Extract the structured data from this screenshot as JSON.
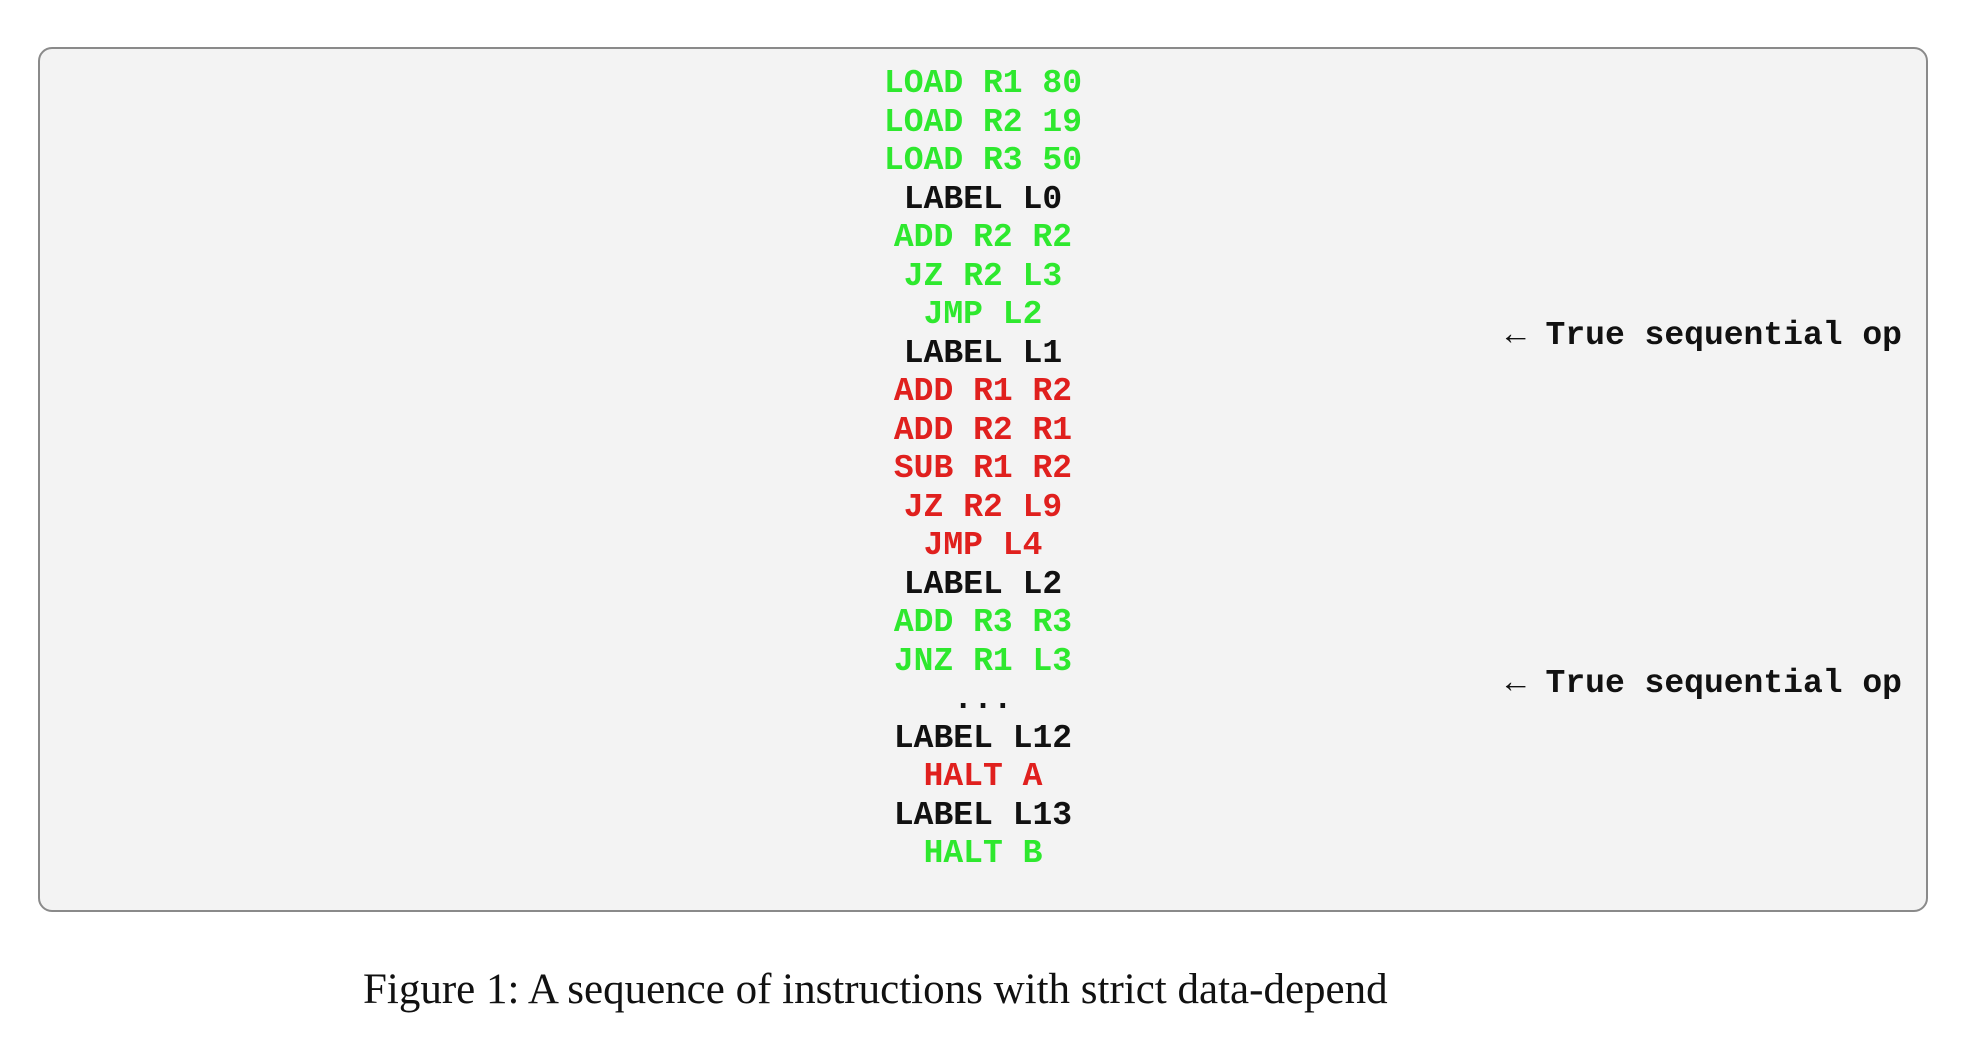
{
  "listing": {
    "lines": [
      {
        "text": "LOAD R1 80",
        "color": "#2ee82e"
      },
      {
        "text": "LOAD R2 19",
        "color": "#2ee82e"
      },
      {
        "text": "LOAD R3 50",
        "color": "#2ee82e"
      },
      {
        "text": "LABEL L0",
        "color": "#111111"
      },
      {
        "text": "ADD R2 R2",
        "color": "#2ee82e"
      },
      {
        "text": "JZ R2 L3",
        "color": "#2ee82e"
      },
      {
        "text": "JMP L2",
        "color": "#2ee82e"
      },
      {
        "text": "LABEL L1",
        "color": "#111111"
      },
      {
        "text": "ADD R1 R2",
        "color": "#e0201e"
      },
      {
        "text": "ADD R2 R1",
        "color": "#e0201e"
      },
      {
        "text": "SUB R1 R2",
        "color": "#e0201e"
      },
      {
        "text": "JZ R2 L9",
        "color": "#e0201e"
      },
      {
        "text": "JMP L4",
        "color": "#e0201e"
      },
      {
        "text": "LABEL L2",
        "color": "#111111"
      },
      {
        "text": "ADD R3 R3",
        "color": "#2ee82e"
      },
      {
        "text": "JNZ R1 L3",
        "color": "#2ee82e"
      },
      {
        "text": "...",
        "color": "#111111"
      },
      {
        "text": "LABEL L12",
        "color": "#111111"
      },
      {
        "text": "HALT A",
        "color": "#e0201e"
      },
      {
        "text": "LABEL L13",
        "color": "#111111"
      },
      {
        "text": "HALT B",
        "color": "#2ee82e"
      }
    ]
  },
  "annotations": [
    "← True sequential op",
    "← True sequential op"
  ],
  "caption": "Figure 1: A sequence of instructions with strict data-depend"
}
